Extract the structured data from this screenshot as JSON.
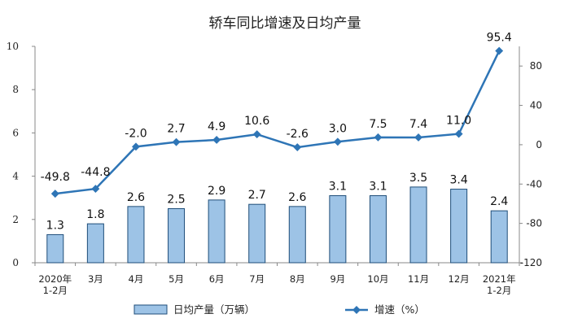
{
  "chart_data": {
    "type": "bar",
    "title": "轿车同比增速及日均产量",
    "categories": [
      [
        "2020年",
        "1-2月"
      ],
      [
        "3月"
      ],
      [
        "4月"
      ],
      [
        "5月"
      ],
      [
        "6月"
      ],
      [
        "7月"
      ],
      [
        "8月"
      ],
      [
        "9月"
      ],
      [
        "10月"
      ],
      [
        "11月"
      ],
      [
        "12月"
      ],
      [
        "2021年",
        "1-2月"
      ]
    ],
    "left_axis": {
      "min": 0,
      "max": 10,
      "ticks": [
        "0",
        "2",
        "4",
        "6",
        "8",
        "10"
      ]
    },
    "right_axis": {
      "min": -120,
      "max": 100,
      "ticks": [
        "-120",
        "-80",
        "-40",
        "0",
        "40",
        "80"
      ]
    },
    "series": [
      {
        "name": "日均产量（万辆）",
        "type": "bar",
        "axis": "left",
        "values": [
          1.3,
          1.8,
          2.6,
          2.5,
          2.9,
          2.7,
          2.6,
          3.1,
          3.1,
          3.5,
          3.4,
          2.4
        ],
        "labels": [
          "1.3",
          "1.8",
          "2.6",
          "2.5",
          "2.9",
          "2.7",
          "2.6",
          "3.1",
          "3.1",
          "3.5",
          "3.4",
          "2.4"
        ],
        "color": "#9dc3e6",
        "edge_color": "#1f4e79"
      },
      {
        "name": "增速（%）",
        "type": "line",
        "axis": "right",
        "values": [
          -49.8,
          -44.8,
          -2.0,
          2.7,
          4.9,
          10.6,
          -2.6,
          3.0,
          7.5,
          7.4,
          11.0,
          95.4
        ],
        "labels": [
          "-49.8",
          "-44.8",
          "-2.0",
          "2.7",
          "4.9",
          "10.6",
          "-2.6",
          "3.0",
          "7.5",
          "7.4",
          "11.0",
          "95.4"
        ],
        "color": "#2e75b6"
      }
    ],
    "legend": {
      "position": "bottom"
    },
    "grid": false
  }
}
